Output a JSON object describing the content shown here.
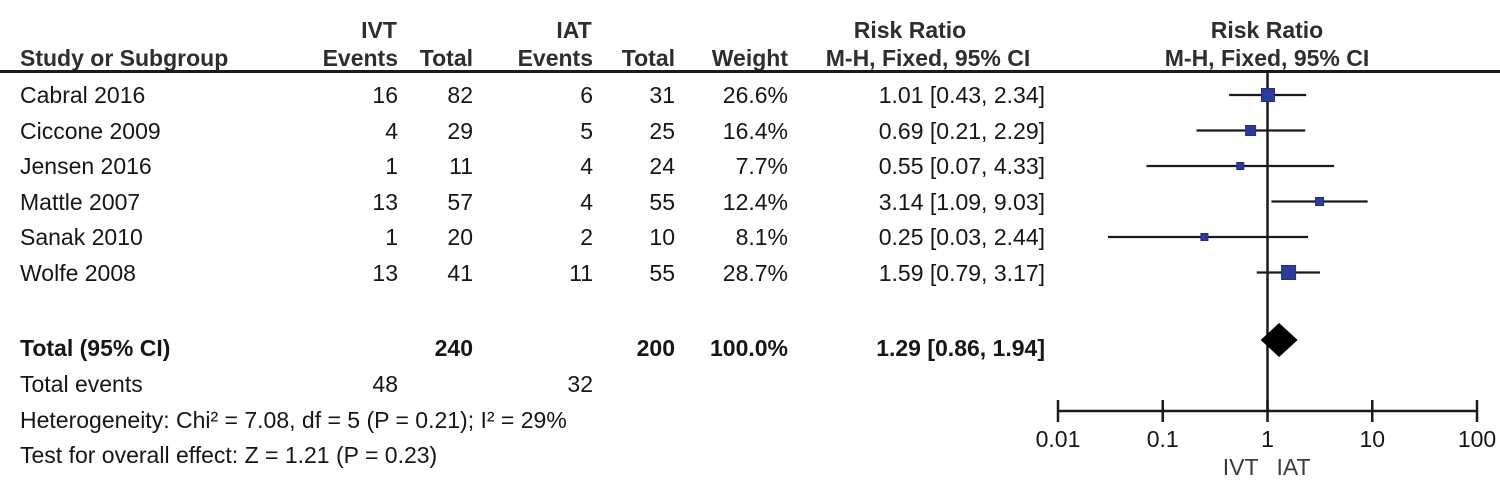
{
  "header": {
    "study": "Study or Subgroup",
    "ivt_group": "IVT",
    "iat_group": "IAT",
    "events_1": "Events",
    "total_1": "Total",
    "events_2": "Events",
    "total_2": "Total",
    "weight": "Weight",
    "risk_ratio_1": "Risk Ratio",
    "risk_ratio_2": "Risk Ratio",
    "method_1": "M-H, Fixed, 95% CI",
    "method_2": "M-H, Fixed, 95% CI"
  },
  "studies": [
    {
      "name": "Cabral 2016",
      "ivt_events": "16",
      "ivt_total": "82",
      "iat_events": "6",
      "iat_total": "31",
      "weight": "26.6%",
      "weight_value": 26.6,
      "rr_text": "1.01 [0.43, 2.34]",
      "rr": 1.01,
      "ci_low": 0.43,
      "ci_high": 2.34
    },
    {
      "name": "Ciccone 2009",
      "ivt_events": "4",
      "ivt_total": "29",
      "iat_events": "5",
      "iat_total": "25",
      "weight": "16.4%",
      "weight_value": 16.4,
      "rr_text": "0.69 [0.21, 2.29]",
      "rr": 0.69,
      "ci_low": 0.21,
      "ci_high": 2.29
    },
    {
      "name": "Jensen 2016",
      "ivt_events": "1",
      "ivt_total": "11",
      "iat_events": "4",
      "iat_total": "24",
      "weight": "7.7%",
      "weight_value": 7.7,
      "rr_text": "0.55 [0.07, 4.33]",
      "rr": 0.55,
      "ci_low": 0.07,
      "ci_high": 4.33
    },
    {
      "name": "Mattle 2007",
      "ivt_events": "13",
      "ivt_total": "57",
      "iat_events": "4",
      "iat_total": "55",
      "weight": "12.4%",
      "weight_value": 12.4,
      "rr_text": "3.14 [1.09, 9.03]",
      "rr": 3.14,
      "ci_low": 1.09,
      "ci_high": 9.03
    },
    {
      "name": "Sanak 2010",
      "ivt_events": "1",
      "ivt_total": "20",
      "iat_events": "2",
      "iat_total": "10",
      "weight": "8.1%",
      "weight_value": 8.1,
      "rr_text": "0.25 [0.03, 2.44]",
      "rr": 0.25,
      "ci_low": 0.03,
      "ci_high": 2.44
    },
    {
      "name": "Wolfe 2008",
      "ivt_events": "13",
      "ivt_total": "41",
      "iat_events": "11",
      "iat_total": "55",
      "weight": "28.7%",
      "weight_value": 28.7,
      "rr_text": "1.59 [0.79, 3.17]",
      "rr": 1.59,
      "ci_low": 0.79,
      "ci_high": 3.17
    }
  ],
  "totals": {
    "label": "Total (95% CI)",
    "ivt_total": "240",
    "iat_total": "200",
    "weight": "100.0%",
    "rr_text": "1.29 [0.86, 1.94]",
    "rr": 1.29,
    "ci_low": 0.86,
    "ci_high": 1.94,
    "events_label": "Total events",
    "ivt_events": "48",
    "iat_events": "32"
  },
  "stats": {
    "heterogeneity": "Heterogeneity: Chi² = 7.08, df = 5 (P = 0.21); I² = 29%",
    "overall_effect": "Test for overall effect: Z = 1.21 (P = 0.23)"
  },
  "axis": {
    "tick_values": [
      0.01,
      0.1,
      1,
      10,
      100
    ],
    "tick_labels": [
      "0.01",
      "0.1",
      "1",
      "10",
      "100"
    ],
    "footer_left": "IVT",
    "footer_right": "IAT"
  },
  "colors": {
    "square": "#2e3a98",
    "square_border": "#232d7d",
    "diamond": "#000000",
    "line": "#1a1a1a",
    "text": "#161616"
  },
  "chart_data": {
    "type": "scatter",
    "subtype": "forest-plot",
    "title": "Risk Ratio, M-H, Fixed, 95% CI",
    "x_scale": "log",
    "x_ticks": [
      0.01,
      0.1,
      1,
      10,
      100
    ],
    "xlim": [
      0.01,
      100
    ],
    "favours_left_label": "IVT",
    "favours_right_label": "IAT",
    "series": [
      {
        "name": "Cabral 2016",
        "rr": 1.01,
        "ci": [
          0.43,
          2.34
        ],
        "weight_pct": 26.6,
        "ivt_events": 16,
        "ivt_total": 82,
        "iat_events": 6,
        "iat_total": 31
      },
      {
        "name": "Ciccone 2009",
        "rr": 0.69,
        "ci": [
          0.21,
          2.29
        ],
        "weight_pct": 16.4,
        "ivt_events": 4,
        "ivt_total": 29,
        "iat_events": 5,
        "iat_total": 25
      },
      {
        "name": "Jensen 2016",
        "rr": 0.55,
        "ci": [
          0.07,
          4.33
        ],
        "weight_pct": 7.7,
        "ivt_events": 1,
        "ivt_total": 11,
        "iat_events": 4,
        "iat_total": 24
      },
      {
        "name": "Mattle 2007",
        "rr": 3.14,
        "ci": [
          1.09,
          9.03
        ],
        "weight_pct": 12.4,
        "ivt_events": 13,
        "ivt_total": 57,
        "iat_events": 4,
        "iat_total": 55
      },
      {
        "name": "Sanak 2010",
        "rr": 0.25,
        "ci": [
          0.03,
          2.44
        ],
        "weight_pct": 8.1,
        "ivt_events": 1,
        "ivt_total": 20,
        "iat_events": 2,
        "iat_total": 10
      },
      {
        "name": "Wolfe 2008",
        "rr": 1.59,
        "ci": [
          0.79,
          3.17
        ],
        "weight_pct": 28.7,
        "ivt_events": 13,
        "ivt_total": 41,
        "iat_events": 11,
        "iat_total": 55
      }
    ],
    "summary": {
      "name": "Total (95% CI)",
      "rr": 1.29,
      "ci": [
        0.86,
        1.94
      ],
      "weight_pct": 100.0,
      "ivt_total": 240,
      "iat_total": 200,
      "total_events_ivt": 48,
      "total_events_iat": 32
    },
    "heterogeneity": {
      "chi2": 7.08,
      "df": 5,
      "p": 0.21,
      "i2_pct": 29
    },
    "overall_effect": {
      "z": 1.21,
      "p": 0.23
    }
  }
}
